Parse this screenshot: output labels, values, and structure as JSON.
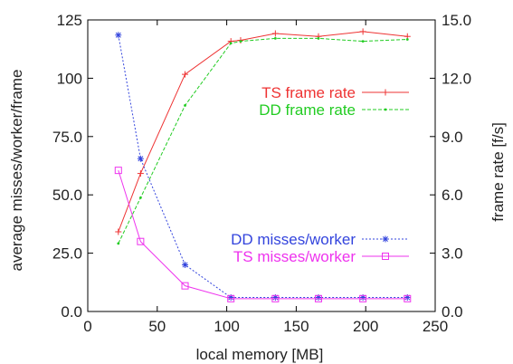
{
  "chart_data": {
    "type": "line",
    "xlabel": "local memory [MB]",
    "ylabel_left": "average misses/worker/frame",
    "ylabel_right": "frame rate [f/s]",
    "xlim": [
      0,
      250
    ],
    "ylim_left": [
      0,
      125
    ],
    "ylim_right": [
      0,
      15
    ],
    "x_ticks": [
      "0",
      "50",
      "100",
      "150",
      "200",
      "250"
    ],
    "y_left_ticks": [
      "0.0",
      "25.0",
      "50.0",
      "75.0",
      "100",
      "125"
    ],
    "y_right_ticks": [
      "0.0",
      "3.0",
      "6.0",
      "9.0",
      "12.0",
      "15.0"
    ],
    "grid": false,
    "series": [
      {
        "name": "TS frame rate",
        "axis": "right",
        "color": "#ee3333",
        "marker": "plus",
        "x": [
          22,
          38,
          70,
          103,
          110,
          135,
          166,
          198,
          230
        ],
        "y": [
          4.1,
          7.1,
          12.2,
          13.9,
          13.95,
          14.3,
          14.15,
          14.4,
          14.15
        ]
      },
      {
        "name": "DD frame rate",
        "axis": "right",
        "color": "#22cc22",
        "marker": "dot",
        "x": [
          22,
          38,
          70,
          103,
          110,
          135,
          166,
          198,
          230
        ],
        "y": [
          3.5,
          5.85,
          10.6,
          13.8,
          13.9,
          14.05,
          14.05,
          13.9,
          14.0
        ]
      },
      {
        "name": "DD misses/worker",
        "axis": "left",
        "color": "#3344dd",
        "marker": "star",
        "x": [
          22,
          38,
          70,
          103,
          135,
          166,
          198,
          230
        ],
        "y": [
          118.5,
          65.5,
          20,
          6,
          6,
          6,
          6,
          6
        ]
      },
      {
        "name": "TS misses/worker",
        "axis": "left",
        "color": "#ee33ee",
        "marker": "square",
        "x": [
          22,
          38,
          70,
          103,
          135,
          166,
          198,
          230
        ],
        "y": [
          60.5,
          30,
          11,
          5.5,
          5.5,
          5.5,
          5.5,
          5.5
        ]
      }
    ],
    "legend": [
      {
        "label": "TS frame rate",
        "color": "#ee3333",
        "marker": "plus",
        "placement": "upper-right"
      },
      {
        "label": "DD frame rate",
        "color": "#22cc22",
        "marker": "dot",
        "placement": "upper-right"
      },
      {
        "label": "DD misses/worker",
        "color": "#3344dd",
        "marker": "star",
        "placement": "lower-right"
      },
      {
        "label": "TS misses/worker",
        "color": "#ee33ee",
        "marker": "square",
        "placement": "lower-right"
      }
    ]
  }
}
